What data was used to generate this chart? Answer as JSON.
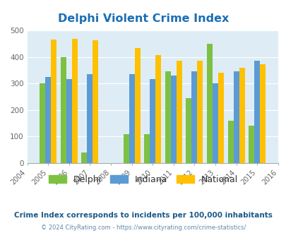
{
  "title": "Delphi Violent Crime Index",
  "years": [
    2005,
    2006,
    2007,
    2009,
    2010,
    2011,
    2012,
    2013,
    2014,
    2015
  ],
  "delphi": [
    300,
    400,
    40,
    110,
    110,
    345,
    245,
    450,
    160,
    140
  ],
  "indiana": [
    325,
    315,
    335,
    335,
    315,
    330,
    345,
    300,
    345,
    385
  ],
  "national": [
    465,
    468,
    462,
    433,
    408,
    385,
    385,
    340,
    358,
    372
  ],
  "delphi_color": "#7dc142",
  "indiana_color": "#5b9bd5",
  "national_color": "#ffc000",
  "plot_bg": "#deedf5",
  "title_color": "#1a6eb5",
  "ylim": [
    0,
    500
  ],
  "yticks": [
    0,
    100,
    200,
    300,
    400,
    500
  ],
  "xlim_min": 2004,
  "xlim_max": 2016,
  "legend_labels": [
    "Delphi",
    "Indiana",
    "National"
  ],
  "footnote1": "Crime Index corresponds to incidents per 100,000 inhabitants",
  "footnote2": "© 2024 CityRating.com - https://www.cityrating.com/crime-statistics/",
  "footnote1_color": "#1a5a8a",
  "footnote2_color": "#6688aa",
  "bar_width": 0.27
}
